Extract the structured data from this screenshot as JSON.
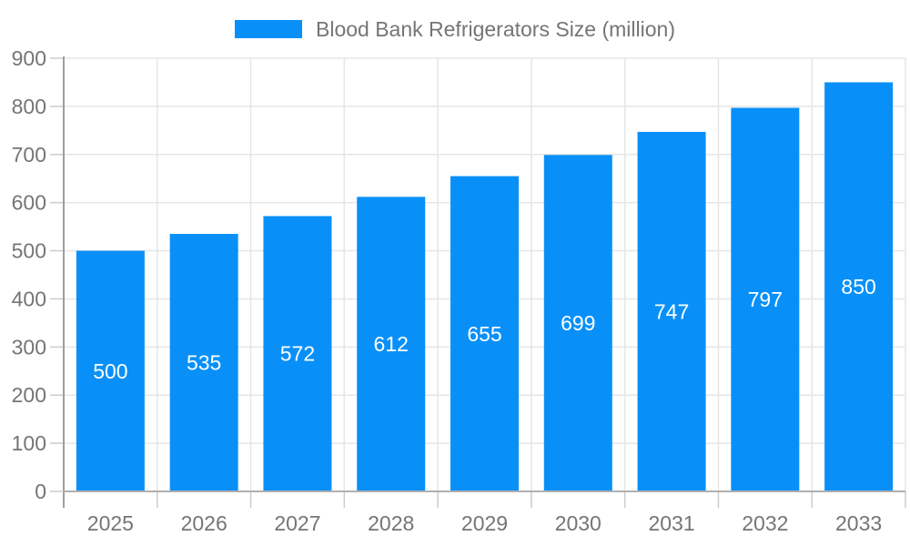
{
  "legend": {
    "label": "Blood Bank Refrigerators Size (million)"
  },
  "colors": {
    "bar": "#0890F8",
    "axis_text": "#757575",
    "grid_line": "#e6e6e6",
    "axis_line": "#b0b0b0",
    "y_axis_line": "#9e9e9e",
    "tick": "#cccccc",
    "value_label": "#ffffff",
    "background": "#ffffff"
  },
  "chart_data": {
    "type": "bar",
    "title": "Blood Bank Refrigerators Size (million)",
    "categories": [
      "2025",
      "2026",
      "2027",
      "2028",
      "2029",
      "2030",
      "2031",
      "2032",
      "2033"
    ],
    "values": [
      500,
      535,
      572,
      612,
      655,
      699,
      747,
      797,
      850
    ],
    "series": [
      {
        "name": "Blood Bank Refrigerators Size (million)",
        "values": [
          500,
          535,
          572,
          612,
          655,
          699,
          747,
          797,
          850
        ]
      }
    ],
    "xlabel": "",
    "ylabel": "",
    "ylim": [
      0,
      900
    ],
    "ytick_step": 100,
    "ytick_labels": [
      "0",
      "100",
      "200",
      "300",
      "400",
      "500",
      "600",
      "700",
      "800",
      "900"
    ],
    "grid": true,
    "legend_position": "top-center",
    "value_label_position": "inside-center"
  }
}
